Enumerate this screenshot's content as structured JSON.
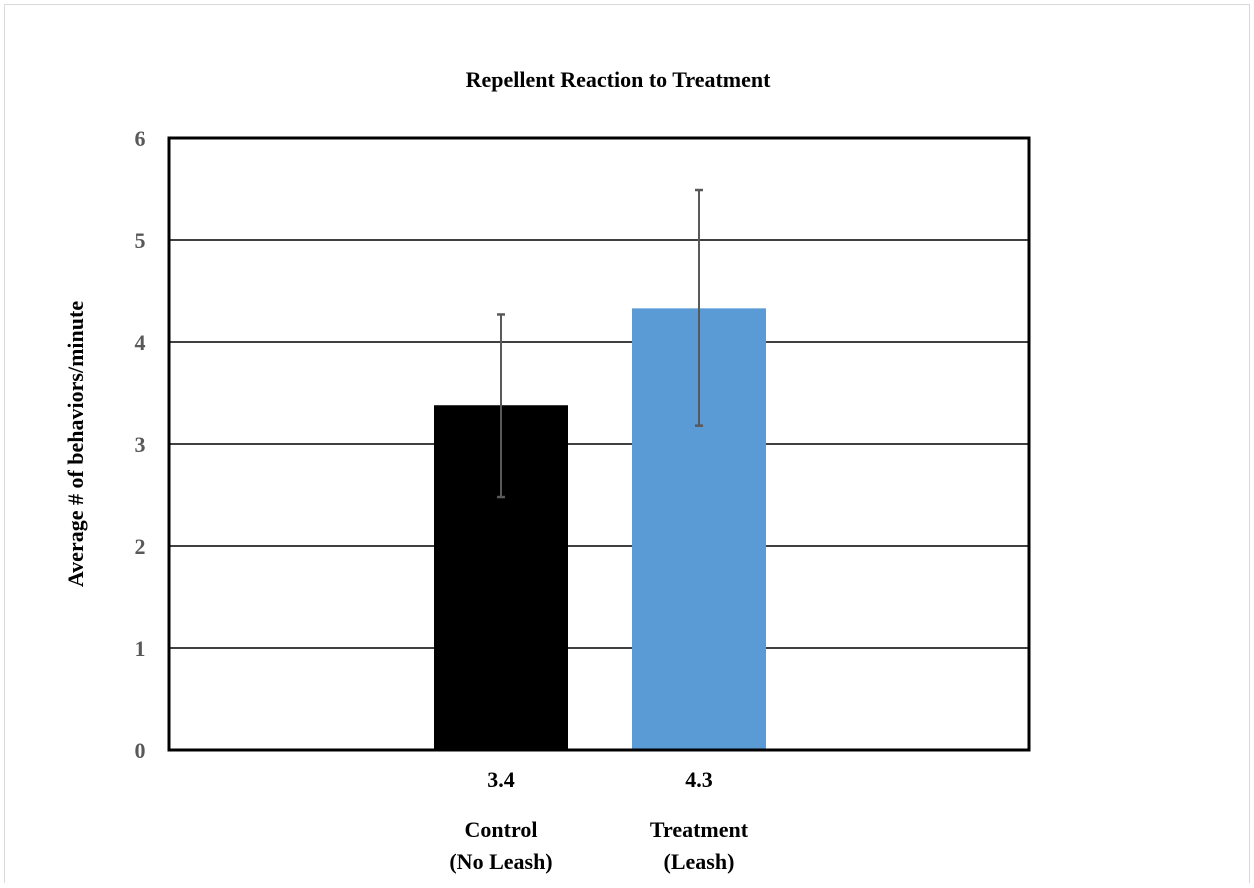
{
  "chart_data": {
    "type": "bar",
    "title": "Repellent Reaction to Treatment",
    "ylabel": "Average # of behaviors/minute",
    "xlabel": "",
    "ylim": [
      0,
      6
    ],
    "yticks": [
      0,
      1,
      2,
      3,
      4,
      5,
      6
    ],
    "grid": true,
    "legend": "none",
    "categories": [
      {
        "value_label": "3.4",
        "label_lines": [
          "Control",
          "(No Leash)"
        ]
      },
      {
        "value_label": "4.3",
        "label_lines": [
          "Treatment",
          "(Leash)"
        ]
      }
    ],
    "values": [
      3.38,
      4.33
    ],
    "error_bars": [
      {
        "low": 2.48,
        "high": 4.27
      },
      {
        "low": 3.18,
        "high": 5.49
      }
    ],
    "colors": {
      "bars": [
        "#000000",
        "#5b9bd5"
      ],
      "error_bar": "#595959",
      "axis_text": "#595959",
      "title_text": "#000000",
      "category_text": "#000000"
    }
  }
}
